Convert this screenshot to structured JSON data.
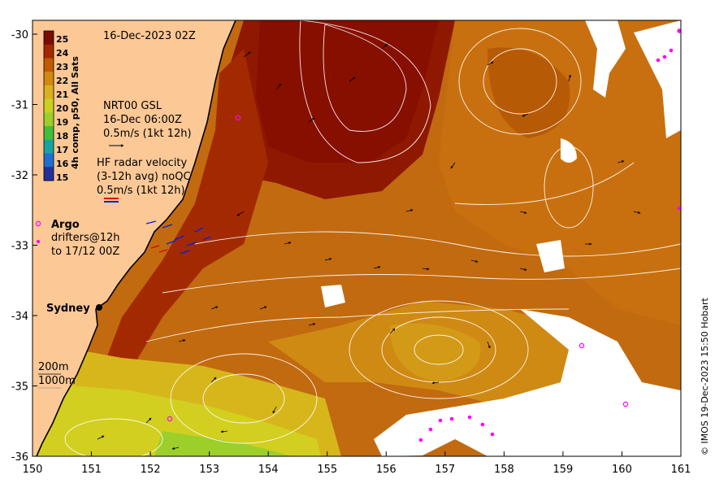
{
  "map": {
    "timestamp": "16-Dec-2023 02Z",
    "x_ticks": [
      "150",
      "151",
      "152",
      "153",
      "154",
      "155",
      "156",
      "157",
      "158",
      "159",
      "160",
      "161"
    ],
    "y_ticks": [
      "-30",
      "-31",
      "-32",
      "-33",
      "-34",
      "-35",
      "-36"
    ],
    "colorbar": {
      "label": "4h comp, p50, All Sats",
      "ticks": [
        "25",
        "24",
        "23",
        "22",
        "21",
        "20",
        "19",
        "18",
        "17",
        "16",
        "15"
      ],
      "colors": [
        "#7a0c00",
        "#a32800",
        "#c05a00",
        "#d08a10",
        "#d8b020",
        "#c8d21e",
        "#9ccf2a",
        "#3fbf3a",
        "#19a3a0",
        "#1e6fd0",
        "#23309a"
      ]
    },
    "gsl": {
      "line1": "NRT00 GSL",
      "line2": "16-Dec 06:00Z",
      "line3": "0.5m/s (1kt 12h)"
    },
    "hf_radar": {
      "line1": "HF radar velocity",
      "line2": "(3-12h avg) noQC",
      "line3": "0.5m/s (1kt 12h)"
    },
    "argo": {
      "label": "Argo",
      "line1": "drifters@12h",
      "line2": "to 17/12 00Z"
    },
    "city": "Sydney",
    "isobaths": {
      "shallow": "200m",
      "deep": "1000m"
    },
    "credit": "© IMOS 19-Dec-2023 15:50 Hobart",
    "colors": {
      "land": "#fcc896",
      "argo": "#ff00ff",
      "radar_red": "#e00000",
      "radar_blue": "#0020e0"
    }
  }
}
